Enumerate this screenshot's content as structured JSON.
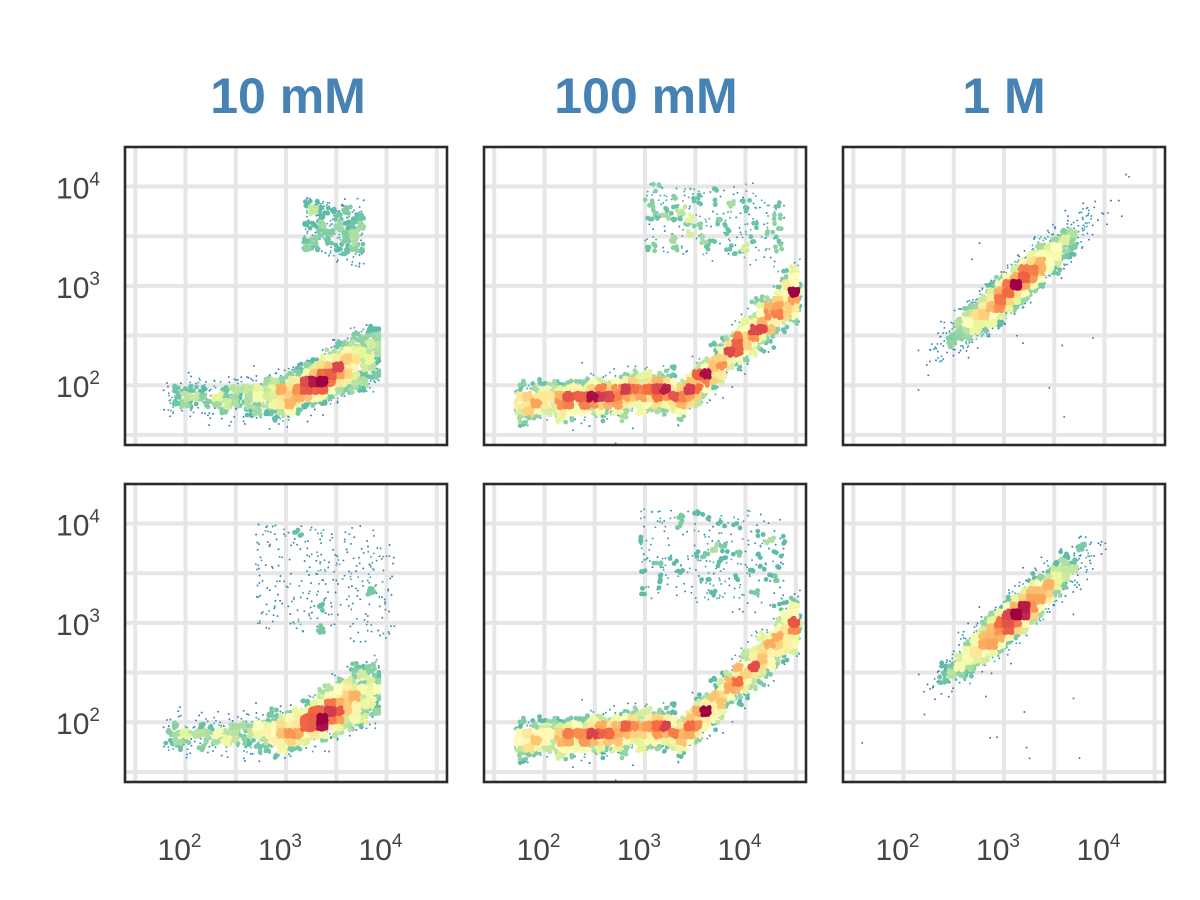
{
  "colors": {
    "title": "#4682b4",
    "frame": "#2b2b2b",
    "grid": "#e6e6e6",
    "tick_text": "#444444",
    "colormap": [
      "#5e4fa2",
      "#3288bd",
      "#66c2a5",
      "#abdda4",
      "#e6f598",
      "#ffffbf",
      "#fee08b",
      "#fdae61",
      "#f46d43",
      "#d53e4f",
      "#9e0142"
    ]
  },
  "chart_data": {
    "type": "scatter",
    "layout": "2 rows x 3 columns, shared log axes",
    "columns": [
      "10 mM",
      "100 mM",
      "1 M"
    ],
    "x_scale": "log",
    "y_scale": "log",
    "xlim": [
      25,
      40000
    ],
    "ylim": [
      25,
      25000
    ],
    "x_ticks": [
      100,
      1000,
      10000
    ],
    "y_ticks": [
      100,
      1000,
      10000
    ],
    "tick_labels": {
      "base": "10",
      "exponents": [
        "2",
        "3",
        "4"
      ]
    },
    "grid": true,
    "density_coloring": "spectral",
    "panels": [
      {
        "row": 1,
        "column": "10 mM",
        "clusters": [
          {
            "kind": "main",
            "x_range": [
              60,
              8000
            ],
            "y_center": 75,
            "peak": [
              2200,
              95
            ]
          },
          {
            "kind": "upper",
            "x_range": [
              1500,
              6000
            ],
            "y_range": [
              1200,
              8000
            ]
          }
        ]
      },
      {
        "row": 1,
        "column": "100 mM",
        "clusters": [
          {
            "kind": "main",
            "x_range": [
              50,
              35000
            ],
            "y_center": 65,
            "rising_to": [
              30000,
              800
            ]
          },
          {
            "kind": "upper",
            "x_range": [
              1000,
              25000
            ],
            "y_range": [
              1000,
              11000
            ]
          }
        ]
      },
      {
        "row": 1,
        "column": "1 M",
        "clusters": [
          {
            "kind": "main",
            "x_range": [
              300,
              6000
            ],
            "y_range": [
              400,
              3500
            ],
            "peak": [
              1300,
              1000
            ]
          }
        ]
      },
      {
        "row": 2,
        "column": "10 mM",
        "clusters": [
          {
            "kind": "main",
            "x_range": [
              60,
              8000
            ],
            "y_center": 75,
            "peak": [
              2300,
              100
            ]
          },
          {
            "kind": "upper",
            "x_range": [
              500,
              12000
            ],
            "y_range": [
              250,
              10000
            ]
          }
        ]
      },
      {
        "row": 2,
        "column": "100 mM",
        "clusters": [
          {
            "kind": "main",
            "x_range": [
              50,
              35000
            ],
            "y_center": 65,
            "rising_to": [
              30000,
              900
            ]
          },
          {
            "kind": "upper",
            "x_range": [
              900,
              25000
            ],
            "y_range": [
              600,
              14000
            ]
          }
        ]
      },
      {
        "row": 2,
        "column": "1 M",
        "clusters": [
          {
            "kind": "main",
            "x_range": [
              400,
              7000
            ],
            "y_range": [
              400,
              4500
            ],
            "peak": [
              1200,
              1100
            ]
          }
        ]
      }
    ]
  }
}
